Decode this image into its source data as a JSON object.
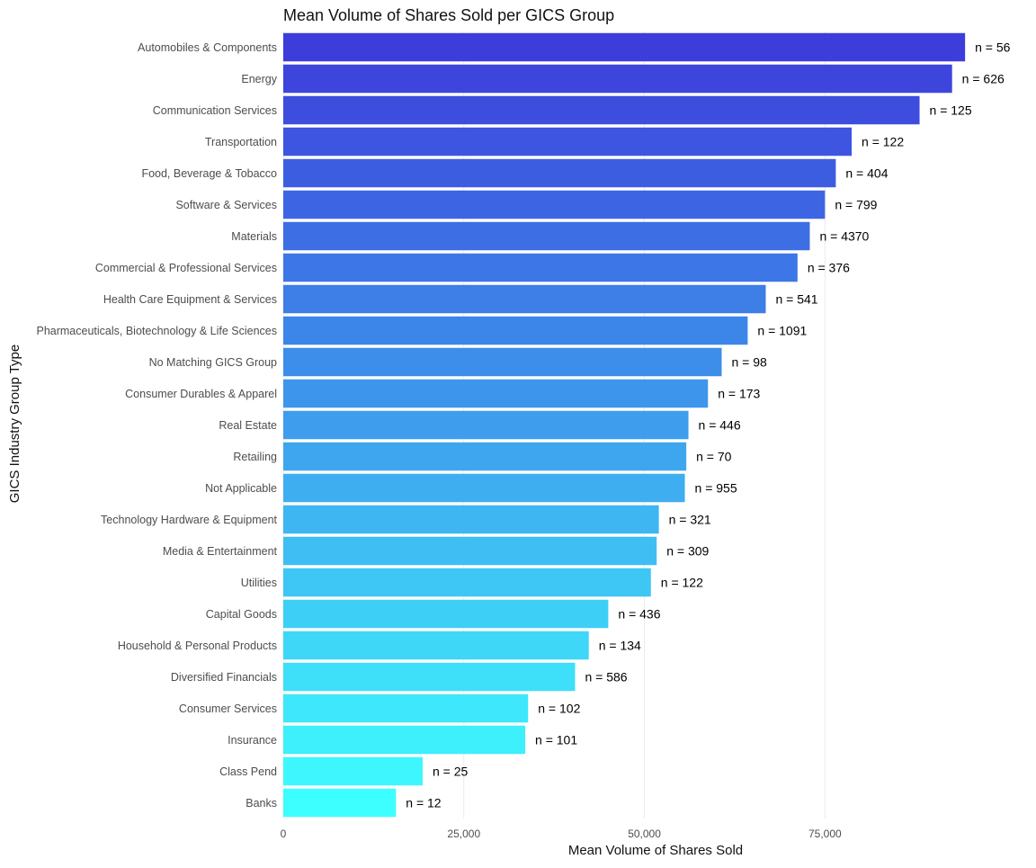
{
  "chart_data": {
    "type": "bar",
    "orientation": "horizontal",
    "title": "Mean Volume of Shares Sold per GICS Group",
    "xlabel": "Mean Volume of Shares Sold",
    "ylabel": "GICS Industry Group Type",
    "xlim": [
      0,
      96500
    ],
    "x_ticks": [
      0,
      25000,
      50000,
      75000
    ],
    "x_tick_labels": [
      "0",
      "25,000",
      "50,000",
      "75,000"
    ],
    "grid": "vertical major",
    "bar_color_gradient": [
      "#3d3ddb",
      "#3effff"
    ],
    "categories": [
      "Automobiles & Components",
      "Energy",
      "Communication Services",
      "Transportation",
      "Food, Beverage & Tobacco",
      "Software & Services",
      "Materials",
      "Commercial & Professional Services",
      "Health Care Equipment & Services",
      "Pharmaceuticals, Biotechnology & Life Sciences",
      "No Matching GICS Group",
      "Consumer Durables & Apparel",
      "Real Estate",
      "Retailing",
      "Not Applicable",
      "Technology Hardware & Equipment",
      "Media & Entertainment",
      "Utilities",
      "Capital Goods",
      "Household & Personal Products",
      "Diversified Financials",
      "Consumer Services",
      "Insurance",
      "Class Pend",
      "Banks"
    ],
    "values": [
      94400,
      92600,
      88100,
      78700,
      76500,
      75000,
      72900,
      71200,
      66800,
      64300,
      60700,
      58800,
      56100,
      55800,
      55600,
      52000,
      51700,
      50900,
      45000,
      42300,
      40400,
      33900,
      33500,
      19300,
      15600
    ],
    "labels": [
      "n = 56",
      "n = 626",
      "n = 125",
      "n = 122",
      "n = 404",
      "n = 799",
      "n = 4370",
      "n = 376",
      "n = 541",
      "n = 1091",
      "n = 98",
      "n = 173",
      "n = 446",
      "n = 70",
      "n = 955",
      "n = 321",
      "n = 309",
      "n = 122",
      "n = 436",
      "n = 134",
      "n = 586",
      "n = 102",
      "n = 101",
      "n = 25",
      "n = 12"
    ]
  }
}
